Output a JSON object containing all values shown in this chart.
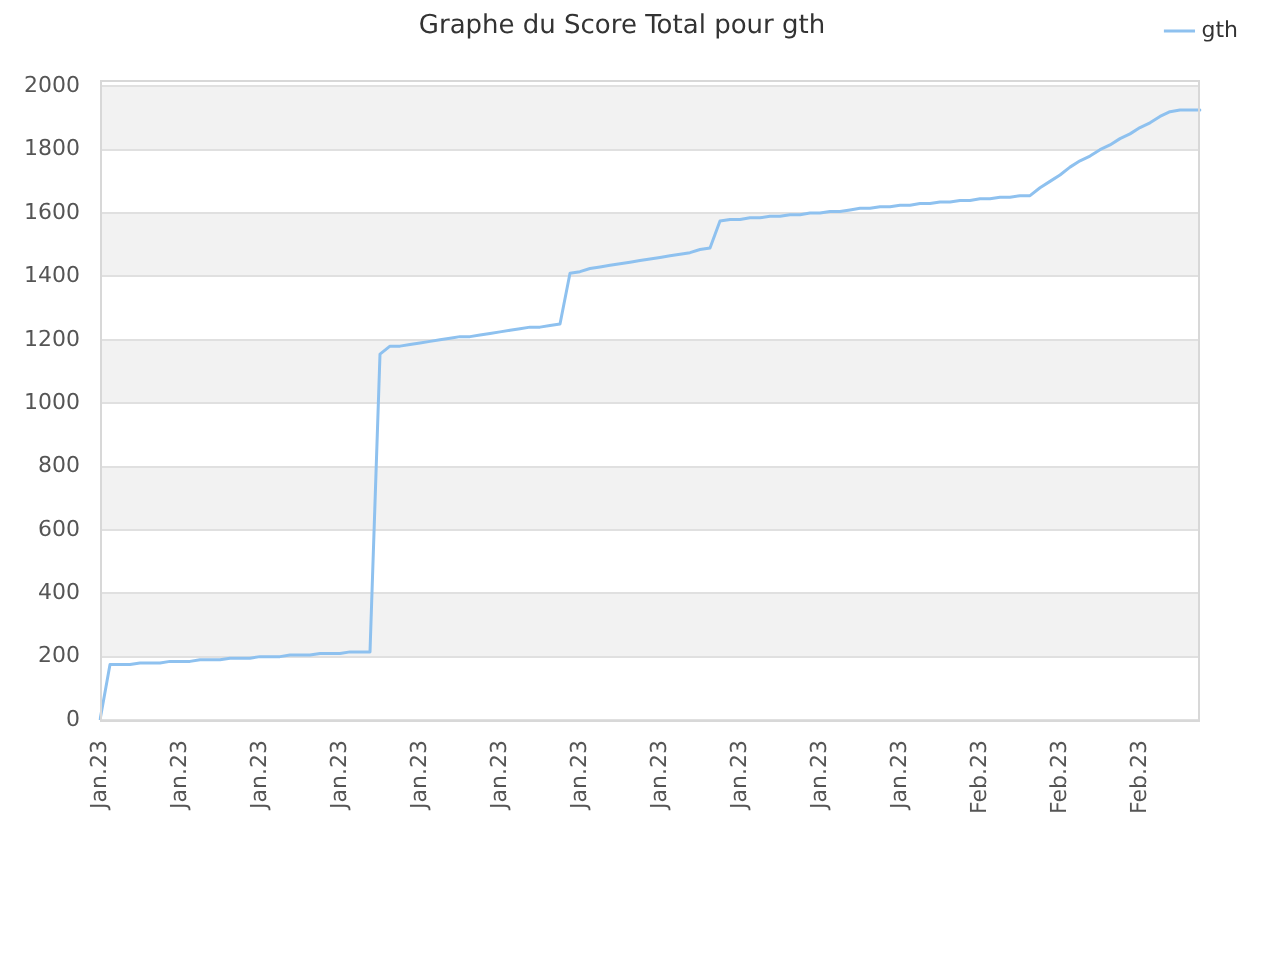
{
  "chart_data": {
    "type": "line",
    "title": "Graphe du Score Total pour gth",
    "categories": [
      "Jan.23",
      null,
      null,
      null,
      null,
      null,
      null,
      null,
      "Jan.23",
      null,
      null,
      null,
      null,
      null,
      null,
      null,
      "Jan.23",
      null,
      null,
      null,
      null,
      null,
      null,
      null,
      "Jan.23",
      null,
      null,
      null,
      null,
      null,
      null,
      null,
      "Jan.23",
      null,
      null,
      null,
      null,
      null,
      null,
      null,
      "Jan.23",
      null,
      null,
      null,
      null,
      null,
      null,
      null,
      "Jan.23",
      null,
      null,
      null,
      null,
      null,
      null,
      null,
      "Jan.23",
      null,
      null,
      null,
      null,
      null,
      null,
      null,
      "Jan.23",
      null,
      null,
      null,
      null,
      null,
      null,
      null,
      "Jan.23",
      null,
      null,
      null,
      null,
      null,
      null,
      null,
      "Jan.23",
      null,
      null,
      null,
      null,
      null,
      null,
      null,
      "Feb.23",
      null,
      null,
      null,
      null,
      null,
      null,
      null,
      "Feb.23",
      null,
      null,
      null,
      null,
      null,
      null,
      null,
      "Feb.23",
      null,
      null,
      null,
      null,
      null,
      null
    ],
    "series": [
      {
        "name": "gth",
        "color": "#8ec1ef",
        "values": [
          0,
          175,
          175,
          175,
          180,
          180,
          180,
          185,
          185,
          185,
          190,
          190,
          190,
          195,
          195,
          195,
          200,
          200,
          200,
          205,
          205,
          205,
          210,
          210,
          210,
          215,
          215,
          215,
          1155,
          1180,
          1180,
          1185,
          1190,
          1195,
          1200,
          1205,
          1210,
          1210,
          1215,
          1220,
          1225,
          1230,
          1235,
          1240,
          1240,
          1245,
          1250,
          1410,
          1415,
          1425,
          1430,
          1435,
          1440,
          1445,
          1450,
          1455,
          1460,
          1465,
          1470,
          1475,
          1485,
          1490,
          1575,
          1580,
          1580,
          1585,
          1585,
          1590,
          1590,
          1595,
          1595,
          1600,
          1600,
          1605,
          1605,
          1610,
          1615,
          1615,
          1620,
          1620,
          1625,
          1625,
          1630,
          1630,
          1635,
          1635,
          1640,
          1640,
          1645,
          1645,
          1650,
          1650,
          1655,
          1655,
          1680,
          1700,
          1720,
          1745,
          1765,
          1780,
          1800,
          1815,
          1835,
          1850,
          1870,
          1885,
          1905,
          1920,
          1925,
          1925,
          1925
        ]
      }
    ],
    "ylim": [
      0,
      2020
    ],
    "yticks": [
      0,
      200,
      400,
      600,
      800,
      1000,
      1200,
      1400,
      1600,
      1800,
      2000
    ],
    "grid": "y",
    "legend": "top right",
    "marker": "none",
    "line_style": "solid"
  }
}
